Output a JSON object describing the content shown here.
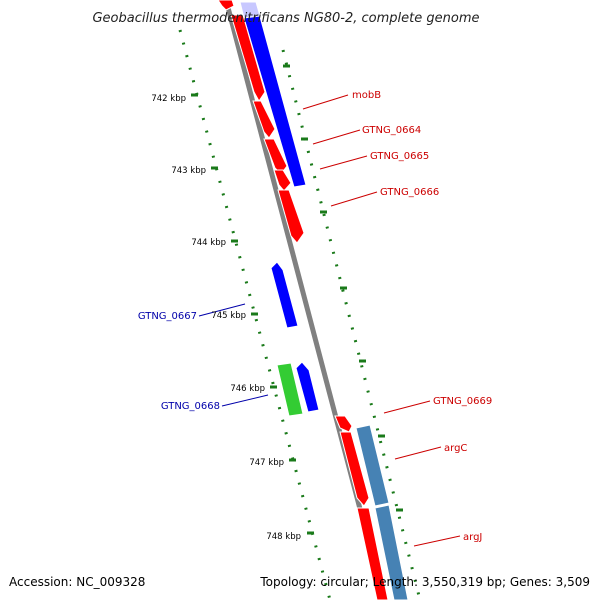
{
  "title": "Geobacillus thermodenitrificans NG80-2, complete genome",
  "footer": {
    "accession": "Accession: NC_009328",
    "summary": "Topology: circular; Length: 3,550,319 bp; Genes: 3,509"
  },
  "colors": {
    "backbone": "#808080",
    "tick": "#1a7a1a",
    "forward_gene": "#ff0000",
    "reverse_gene": "#0000ff",
    "rna_gene": "#33cc33",
    "pseudo_gene": "#4682b4",
    "label_forward": "#cc0000",
    "label_reverse": "#0000aa"
  },
  "scale": {
    "ticks": [
      {
        "label": "742 kbp"
      },
      {
        "label": "743 kbp"
      },
      {
        "label": "744 kbp"
      },
      {
        "label": "745 kbp"
      },
      {
        "label": "746 kbp"
      },
      {
        "label": "747 kbp"
      },
      {
        "label": "748 kbp"
      }
    ]
  },
  "gene_labels": [
    {
      "text": "mobB",
      "strand": "forward"
    },
    {
      "text": "GTNG_0664",
      "strand": "forward"
    },
    {
      "text": "GTNG_0665",
      "strand": "forward"
    },
    {
      "text": "GTNG_0666",
      "strand": "forward"
    },
    {
      "text": "GTNG_0667",
      "strand": "reverse"
    },
    {
      "text": "GTNG_0668",
      "strand": "reverse"
    },
    {
      "text": "GTNG_0669",
      "strand": "forward"
    },
    {
      "text": "argC",
      "strand": "forward"
    },
    {
      "text": "argJ",
      "strand": "forward"
    }
  ]
}
